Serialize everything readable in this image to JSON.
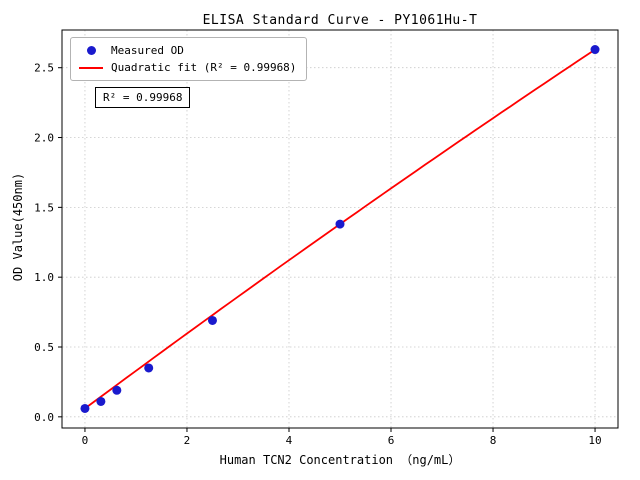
{
  "chart_data": {
    "type": "scatter",
    "title": "ELISA Standard Curve - PY1061Hu-T",
    "xlabel": "Human TCN2 Concentration （ng/mL）",
    "ylabel": "OD Value(450nm)",
    "xlim": [
      -0.45,
      10.45
    ],
    "ylim": [
      -0.08,
      2.77
    ],
    "x_ticks": [
      0,
      2,
      4,
      6,
      8,
      10
    ],
    "y_ticks": [
      0.0,
      0.5,
      1.0,
      1.5,
      2.0,
      2.5
    ],
    "grid": true,
    "legend_position": "upper-left",
    "series": [
      {
        "name": "Measured OD",
        "type": "scatter",
        "color": "#1a1acd",
        "x": [
          0,
          0.3125,
          0.625,
          1.25,
          2.5,
          5,
          10
        ],
        "y": [
          0.06,
          0.11,
          0.19,
          0.35,
          0.69,
          1.38,
          2.63
        ]
      },
      {
        "name": "Quadratic fit (R² = 0.99968)",
        "type": "line",
        "color": "#ff0000"
      }
    ],
    "annotation": "R² = 0.99968",
    "r_squared": "0.99968",
    "colors": {
      "point": "#1a1acd",
      "line": "#ff0000",
      "grid": "#c9c9c9",
      "axis": "#000000",
      "text": "#000000"
    }
  }
}
